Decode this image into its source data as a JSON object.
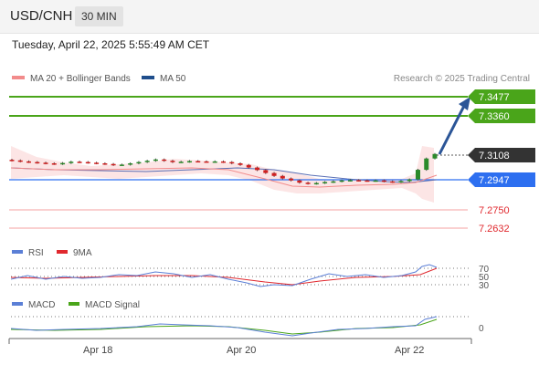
{
  "header": {
    "symbol": "USD/CNH",
    "timeframe": "30 MIN"
  },
  "timestamp": "Tuesday, April 22, 2025 5:55:49 AM CET",
  "main_legend": {
    "bollinger": {
      "label": "MA 20 + Bollinger Bands",
      "color": "#f28b8b"
    },
    "ma50": {
      "label": "MA 50",
      "color": "#1f4e8c"
    }
  },
  "credit": "Research © 2025 Trading Central",
  "levels": {
    "resistance_2": {
      "value": "7.3477",
      "color": "#4aa51a"
    },
    "resistance_1": {
      "value": "7.3360",
      "color": "#4aa51a"
    },
    "last_price": {
      "value": "7.3108",
      "color": "#333333"
    },
    "pivot": {
      "value": "7.2947",
      "color": "#2d6ff0"
    },
    "support_1": {
      "value": "7.2750",
      "color": "#e0282e"
    },
    "support_2": {
      "value": "7.2632",
      "color": "#e0282e"
    }
  },
  "rsi_panel": {
    "legend": [
      {
        "label": "RSI",
        "color": "#5b7fd6"
      },
      {
        "label": "9MA",
        "color": "#e0282e"
      }
    ],
    "levels": [
      "70",
      "50",
      "30"
    ]
  },
  "macd_panel": {
    "legend": [
      {
        "label": "MACD",
        "color": "#5b7fd6"
      },
      {
        "label": "MACD Signal",
        "color": "#4aa51a"
      }
    ],
    "zero_label": "0"
  },
  "x_axis": {
    "labels": [
      "Apr 18",
      "Apr 20",
      "Apr 22"
    ]
  },
  "chart_data": {
    "type": "candlestick",
    "ylim": [
      7.258,
      7.352
    ],
    "close_series": [
      7.3068,
      7.3062,
      7.3058,
      7.3054,
      7.305,
      7.3046,
      7.3052,
      7.306,
      7.3058,
      7.3054,
      7.305,
      7.3046,
      7.304,
      7.3042,
      7.305,
      7.3058,
      7.3066,
      7.3074,
      7.3066,
      7.3058,
      7.306,
      7.3064,
      7.3062,
      7.306,
      7.3062,
      7.3058,
      7.305,
      7.304,
      7.3024,
      7.3008,
      7.299,
      7.2972,
      7.2956,
      7.2944,
      7.293,
      7.2924,
      7.2928,
      7.2934,
      7.2938,
      7.2944,
      7.2946,
      7.2944,
      7.2942,
      7.2944,
      7.2938,
      7.2934,
      7.294,
      7.295,
      7.301,
      7.308,
      7.3108
    ],
    "target_arrow": {
      "from": "7.3108",
      "to": "7.3477"
    }
  }
}
